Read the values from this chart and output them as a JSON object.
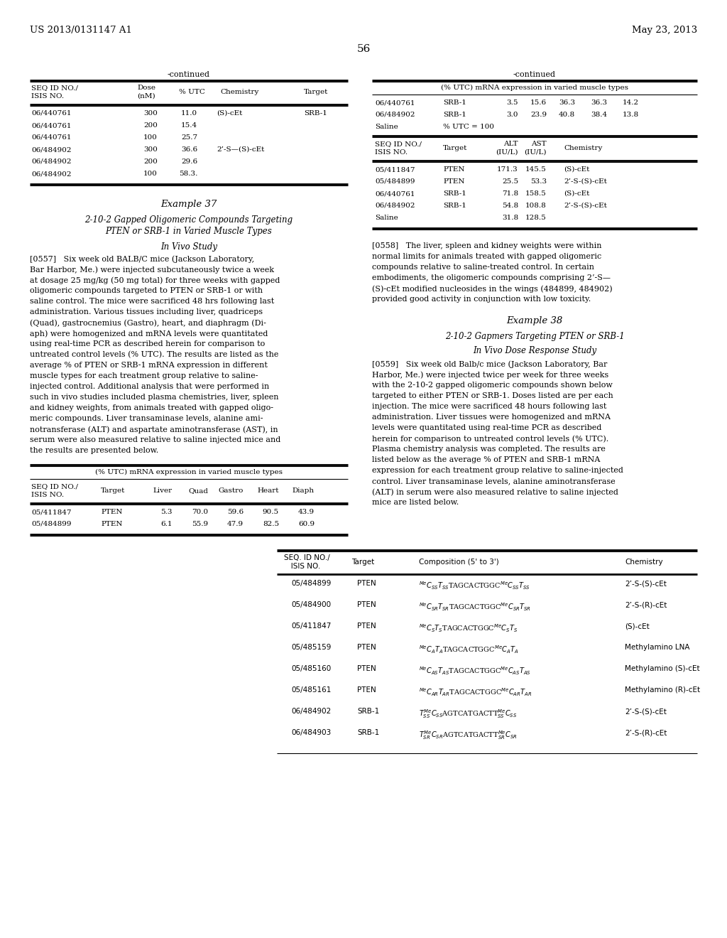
{
  "bg": "#ffffff",
  "hdr_left": "US 2013/0131147 A1",
  "hdr_right": "May 23, 2013",
  "pg": "56",
  "t1_rows": [
    [
      "06/440761",
      "300",
      "11.0",
      "(S)-cEt",
      "SRB-1"
    ],
    [
      "06/440761",
      "200",
      "15.4",
      "",
      ""
    ],
    [
      "06/440761",
      "100",
      "25.7",
      "",
      ""
    ],
    [
      "06/484902",
      "300",
      "36.6",
      "2’-S—(S)-cEt",
      ""
    ],
    [
      "06/484902",
      "200",
      "29.6",
      "",
      ""
    ],
    [
      "06/484902",
      "100",
      "58.3.",
      "",
      ""
    ]
  ],
  "t2a_rows": [
    [
      "06/440761",
      "SRB-1",
      "3.5",
      "15.6",
      "36.3",
      "36.3",
      "14.2"
    ],
    [
      "06/484902",
      "SRB-1",
      "3.0",
      "23.9",
      "40.8",
      "38.4",
      "13.8"
    ],
    [
      "Saline",
      "% UTC = 100",
      "",
      "",
      "",
      "",
      ""
    ]
  ],
  "t2b_rows": [
    [
      "05/411847",
      "PTEN",
      "171.3",
      "145.5",
      "(S)-cEt"
    ],
    [
      "05/484899",
      "PTEN",
      "25.5",
      "53.3",
      "2’-S-(S)-cEt"
    ],
    [
      "06/440761",
      "SRB-1",
      "71.8",
      "158.5",
      "(S)-cEt"
    ],
    [
      "06/484902",
      "SRB-1",
      "54.8",
      "108.8",
      "2’-S-(S)-cEt"
    ],
    [
      "Saline",
      "",
      "31.8",
      "128.5",
      ""
    ]
  ],
  "p0557_lines": [
    "[0557]   Six week old BALB/C mice (Jackson Laboratory,",
    "Bar Harbor, Me.) were injected subcutaneously twice a week",
    "at dosage 25 mg/kg (50 mg total) for three weeks with gapped",
    "oligomeric compounds targeted to PTEN or SRB-1 or with",
    "saline control. The mice were sacrificed 48 hrs following last",
    "administration. Various tissues including liver, quadriceps",
    "(Quad), gastrocnemius (Gastro), heart, and diaphragm (Di-",
    "aph) were homogenized and mRNA levels were quantitated",
    "using real-time PCR as described herein for comparison to",
    "untreated control levels (% UTC). The results are listed as the",
    "average % of PTEN or SRB-1 mRNA expression in different",
    "muscle types for each treatment group relative to saline-",
    "injected control. Additional analysis that were performed in",
    "such in vivo studies included plasma chemistries, liver, spleen",
    "and kidney weights, from animals treated with gapped oligo-",
    "meric compounds. Liver transaminase levels, alanine ami-",
    "notransferase (ALT) and aspartate aminotransferase (AST), in",
    "serum were also measured relative to saline injected mice and",
    "the results are presented below."
  ],
  "t3_rows": [
    [
      "05/411847",
      "PTEN",
      "5.3",
      "70.0",
      "59.6",
      "90.5",
      "43.9"
    ],
    [
      "05/484899",
      "PTEN",
      "6.1",
      "55.9",
      "47.9",
      "82.5",
      "60.9"
    ]
  ],
  "p0558_lines": [
    "[0558]   The liver, spleen and kidney weights were within",
    "normal limits for animals treated with gapped oligomeric",
    "compounds relative to saline-treated control. In certain",
    "embodiments, the oligomeric compounds comprising 2’-S—",
    "(S)-cEt modified nucleosides in the wings (484899, 484902)",
    "provided good activity in conjunction with low toxicity."
  ],
  "p0559_lines": [
    "[0559]   Six week old Balb/c mice (Jackson Laboratory, Bar",
    "Harbor, Me.) were injected twice per week for three weeks",
    "with the 2-10-2 gapped oligomeric compounds shown below",
    "targeted to either PTEN or SRB-1. Doses listed are per each",
    "injection. The mice were sacrificed 48 hours following last",
    "administration. Liver tissues were homogenized and mRNA",
    "levels were quantitated using real-time PCR as described",
    "herein for comparison to untreated control levels (% UTC).",
    "Plasma chemistry analysis was completed. The results are",
    "listed below as the average % of PTEN and SRB-1 mRNA",
    "expression for each treatment group relative to saline-injected",
    "control. Liver transaminase levels, alanine aminotransferase",
    "(ALT) in serum were also measured relative to saline injected",
    "mice are listed below."
  ],
  "bt_rows": [
    [
      "05/484899",
      "PTEN",
      "$^{Me}C_{SS}T_{SS}$TAGCACTGGC$^{Me}C_{SS}T_{SS}$",
      "2’-S-(S)-cEt"
    ],
    [
      "05/484900",
      "PTEN",
      "$^{Me}C_{SR}T_{SR}$TAGCACTGGC$^{Me}C_{SR}T_{SR}$",
      "2’-S-(R)-cEt"
    ],
    [
      "05/411847",
      "PTEN",
      "$^{Me}C_{S}T_{S}$TAGCACTGGC$^{Me}C_{S}T_{S}$",
      "(S)-cEt"
    ],
    [
      "05/485159",
      "PTEN",
      "$^{Me}C_{A}T_{A}$TAGCACTGGC$^{Me}C_{A}T_{A}$",
      "Methylamino LNA"
    ],
    [
      "05/485160",
      "PTEN",
      "$^{Me}C_{AS}T_{AS}$TAGCACTGGC$^{Me}C_{AS}T_{AS}$",
      "Methylamino (S)-cEt"
    ],
    [
      "05/485161",
      "PTEN",
      "$^{Me}C_{AR}T_{AR}$TAGCACTGGC$^{Me}C_{AR}T_{AR}$",
      "Methylamino (R)-cEt"
    ],
    [
      "06/484902",
      "SRB-1",
      "$T_{SS}$$^{Me}C_{SS}$AGTCATGACTT$_{SS}$$^{Me}C_{SS}$",
      "2’-S-(S)-cEt"
    ],
    [
      "06/484903",
      "SRB-1",
      "$T_{SR}$$^{Me}C_{SR}$AGTCATGACTT$_{SR}$$^{Me}C_{SR}$",
      "2’-S-(R)-cEt"
    ]
  ]
}
